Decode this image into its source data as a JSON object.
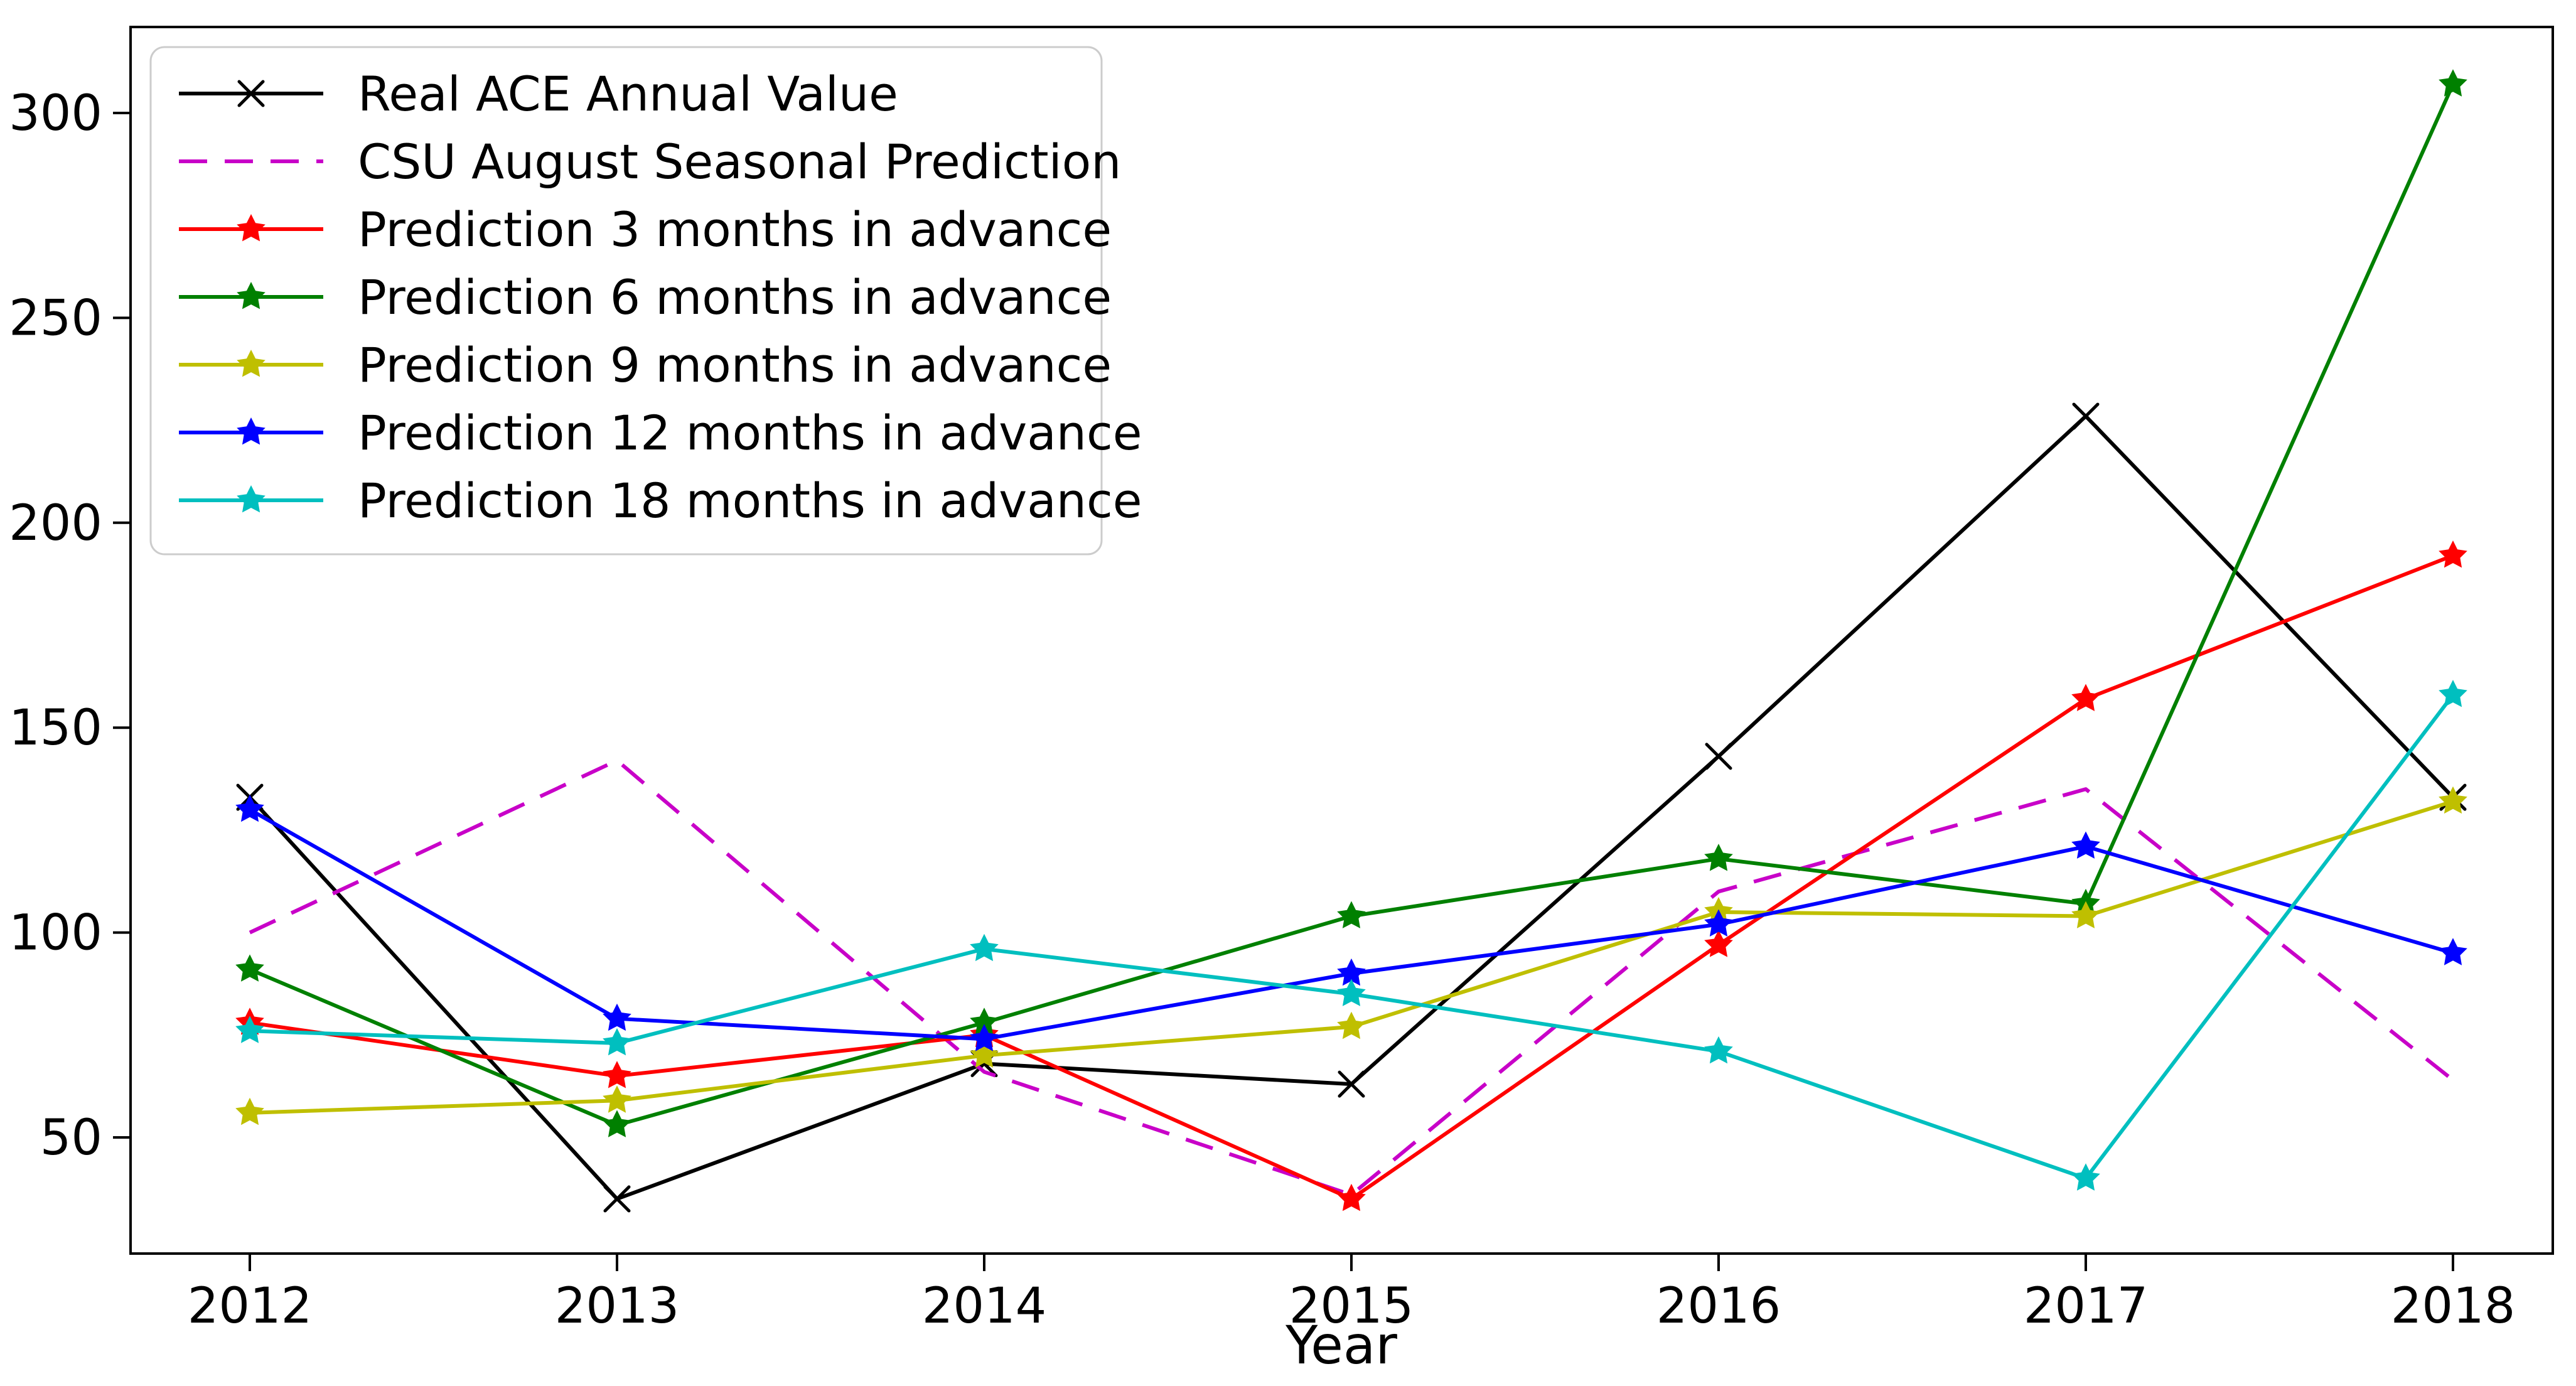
{
  "chart_data": {
    "type": "line",
    "title": "",
    "xlabel": "Year",
    "ylabel": "",
    "grid": false,
    "legend_position": "upper left",
    "categories": [
      2012,
      2013,
      2014,
      2015,
      2016,
      2017,
      2018
    ],
    "y_ticks": [
      50,
      100,
      150,
      200,
      250,
      300
    ],
    "ylim": [
      22,
      321
    ],
    "xlim": [
      2011.67,
      2018.27
    ],
    "series": [
      {
        "name": "Real ACE Annual Value",
        "color": "#000000",
        "linestyle": "solid",
        "marker": "x",
        "values": [
          133,
          35,
          68,
          63,
          143,
          226,
          133
        ]
      },
      {
        "name": "CSU August Seasonal Prediction",
        "color": "#c800c8",
        "linestyle": "dashed",
        "marker": "none",
        "values": [
          100,
          142,
          66,
          36,
          110,
          135,
          64
        ]
      },
      {
        "name": "Prediction 3 months in advance",
        "color": "#ff0000",
        "linestyle": "solid",
        "marker": "star",
        "values": [
          78,
          65,
          75,
          35,
          97,
          157,
          192
        ]
      },
      {
        "name": "Prediction 6 months in advance",
        "color": "#008000",
        "linestyle": "solid",
        "marker": "star",
        "values": [
          91,
          53,
          78,
          104,
          118,
          107,
          307
        ]
      },
      {
        "name": "Prediction 9 months in advance",
        "color": "#bfbf00",
        "linestyle": "solid",
        "marker": "star",
        "values": [
          56,
          59,
          70,
          77,
          105,
          104,
          132
        ]
      },
      {
        "name": "Prediction 12 months in advance",
        "color": "#0000ff",
        "linestyle": "solid",
        "marker": "star",
        "values": [
          130,
          79,
          74,
          90,
          102,
          121,
          95
        ]
      },
      {
        "name": "Prediction 18 months in advance",
        "color": "#00bfbf",
        "linestyle": "solid",
        "marker": "star",
        "values": [
          76,
          73,
          96,
          85,
          71,
          40,
          158
        ]
      }
    ]
  }
}
